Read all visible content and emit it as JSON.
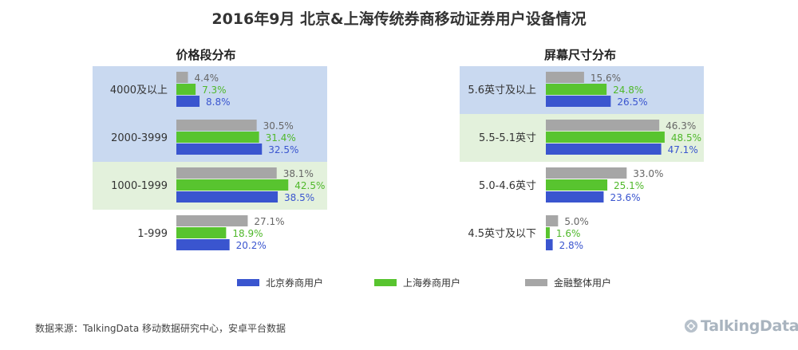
{
  "title": "2016年9月  北京&上海传统券商移动证券用户设备情况",
  "colors": {
    "beijing": "#3a55cf",
    "shanghai": "#58c42f",
    "overall": "#a6a6a6",
    "band_blue": "#c9d9f0",
    "band_green": "#e3f1dc",
    "label_beijing": "#3a55cf",
    "label_shanghai": "#4fb82a",
    "label_overall": "#666666"
  },
  "legend": [
    {
      "key": "beijing",
      "name": "北京券商用户"
    },
    {
      "key": "shanghai",
      "name": "上海券商用户"
    },
    {
      "key": "overall",
      "name": "金融整体用户"
    }
  ],
  "source": "数据来源：TalkingData 移动数据研究中心，安卓平台数据",
  "logo": "TalkingData",
  "chart_data": [
    {
      "type": "bar",
      "orientation": "horizontal",
      "title": "价格段分布",
      "categories": [
        "4000及以上",
        "2000-3999",
        "1000-1999",
        "1-999"
      ],
      "category_bands": [
        "blue",
        "blue",
        "green",
        "none"
      ],
      "series": [
        {
          "name": "金融整体用户",
          "key": "overall",
          "values": [
            4.4,
            30.5,
            38.1,
            27.1
          ],
          "labels": [
            "4.4%",
            "30.5%",
            "38.1%",
            "27.1%"
          ]
        },
        {
          "name": "上海券商用户",
          "key": "shanghai",
          "values": [
            7.3,
            31.4,
            42.5,
            18.9
          ],
          "labels": [
            "7.3%",
            "31.4%",
            "42.5%",
            "18.9%"
          ]
        },
        {
          "name": "北京券商用户",
          "key": "beijing",
          "values": [
            8.8,
            32.5,
            38.5,
            20.2
          ],
          "labels": [
            "8.8%",
            "32.5%",
            "38.5%",
            "20.2%"
          ]
        }
      ],
      "unit": "%",
      "xlim": [
        0,
        50
      ],
      "legend_position": "bottom"
    },
    {
      "type": "bar",
      "orientation": "horizontal",
      "title": "屏幕尺寸分布",
      "categories": [
        "5.6英寸及以上",
        "5.5-5.1英寸",
        "5.0-4.6英寸",
        "4.5英寸及以下"
      ],
      "category_bands": [
        "blue",
        "green",
        "none",
        "none"
      ],
      "series": [
        {
          "name": "金融整体用户",
          "key": "overall",
          "values": [
            15.6,
            46.3,
            33.0,
            5.0
          ],
          "labels": [
            "15.6%",
            "46.3%",
            "33.0%",
            "5.0%"
          ]
        },
        {
          "name": "上海券商用户",
          "key": "shanghai",
          "values": [
            24.8,
            48.5,
            25.1,
            1.6
          ],
          "labels": [
            "24.8%",
            "48.5%",
            "25.1%",
            "1.6%"
          ]
        },
        {
          "name": "北京券商用户",
          "key": "beijing",
          "values": [
            26.5,
            47.1,
            23.6,
            2.8
          ],
          "labels": [
            "26.5%",
            "47.1%",
            "23.6%",
            "2.8%"
          ]
        }
      ],
      "unit": "%",
      "xlim": [
        0,
        55
      ],
      "legend_position": "bottom"
    }
  ]
}
